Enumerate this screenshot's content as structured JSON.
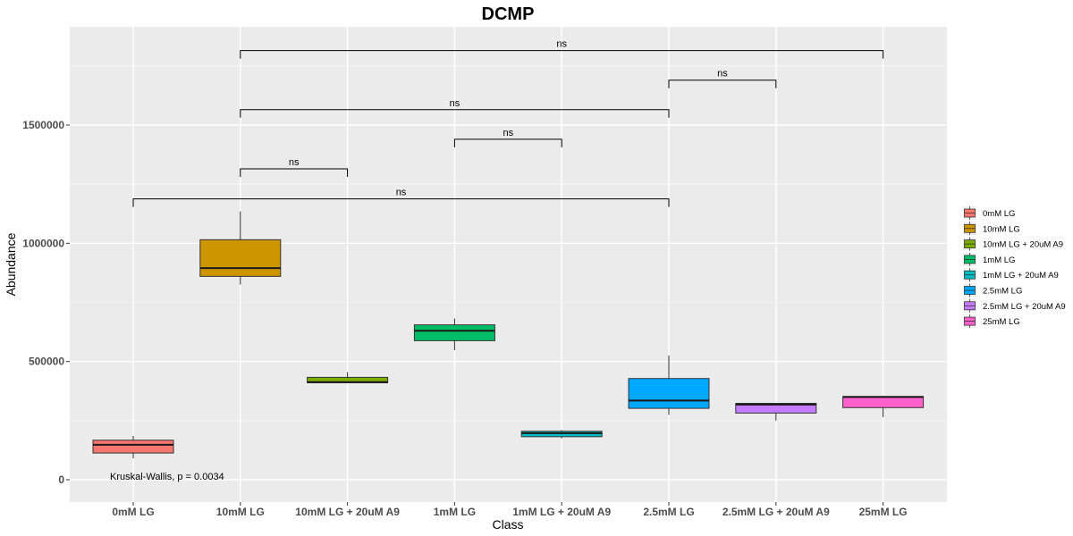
{
  "chart_data": {
    "type": "box",
    "title": "DCMP",
    "xlabel": "Class",
    "ylabel": "Abundance",
    "ylim": [
      -60000,
      1900000
    ],
    "y_ticks": [
      0,
      500000,
      1000000,
      1500000
    ],
    "y_tick_labels": [
      "0",
      "500000",
      "1000000",
      "1500000"
    ],
    "grid": true,
    "legend_position": "right",
    "categories": [
      "0mM LG",
      "10mM LG",
      "10mM LG + 20uM A9",
      "1mM LG",
      "1mM LG + 20uM A9",
      "2.5mM LG",
      "2.5mM LG + 20uM A9",
      "25mM LG"
    ],
    "boxes": [
      {
        "name": "0mM LG",
        "color": "#F8766D",
        "min": 90000,
        "q1": 113000,
        "median": 148000,
        "q3": 167000,
        "max": 185000
      },
      {
        "name": "10mM LG",
        "color": "#CD9600",
        "min": 825000,
        "q1": 860000,
        "median": 895000,
        "q3": 1015000,
        "max": 1135000
      },
      {
        "name": "10mM LG + 20uM A9",
        "color": "#7CAE00",
        "min": 408000,
        "q1": 410000,
        "median": 413000,
        "q3": 433000,
        "max": 455000
      },
      {
        "name": "1mM LG",
        "color": "#00BE67",
        "min": 548000,
        "q1": 588000,
        "median": 630000,
        "q3": 655000,
        "max": 682000
      },
      {
        "name": "1mM LG + 20uM A9",
        "color": "#00BFC4",
        "min": 175000,
        "q1": 182000,
        "median": 197000,
        "q3": 205000,
        "max": 210000
      },
      {
        "name": "2.5mM LG",
        "color": "#00A9FF",
        "min": 275000,
        "q1": 302000,
        "median": 335000,
        "q3": 428000,
        "max": 525000
      },
      {
        "name": "2.5mM LG + 20uM A9",
        "color": "#C77CFF",
        "min": 250000,
        "q1": 282000,
        "median": 318000,
        "q3": 323000,
        "max": 325000
      },
      {
        "name": "25mM LG",
        "color": "#FF61CC",
        "min": 265000,
        "q1": 305000,
        "median": 350000,
        "q3": 352000,
        "max": 354000
      }
    ],
    "comparisons": [
      {
        "from": "10mM LG",
        "to": "25mM LG",
        "y": 1815000,
        "label": "ns"
      },
      {
        "from": "2.5mM LG",
        "to": "2.5mM LG + 20uM A9",
        "y": 1690000,
        "label": "ns"
      },
      {
        "from": "10mM LG",
        "to": "2.5mM LG",
        "y": 1565000,
        "label": "ns"
      },
      {
        "from": "1mM LG",
        "to": "1mM LG + 20uM A9",
        "y": 1440000,
        "label": "ns"
      },
      {
        "from": "10mM LG",
        "to": "10mM LG + 20uM A9",
        "y": 1315000,
        "label": "ns"
      },
      {
        "from": "0mM LG",
        "to": "2.5mM LG",
        "y": 1188000,
        "label": "ns"
      }
    ],
    "annotation": {
      "text": "Kruskal-Wallis, p = 0.0034",
      "x_category": "0mM LG",
      "y": 15000
    }
  }
}
